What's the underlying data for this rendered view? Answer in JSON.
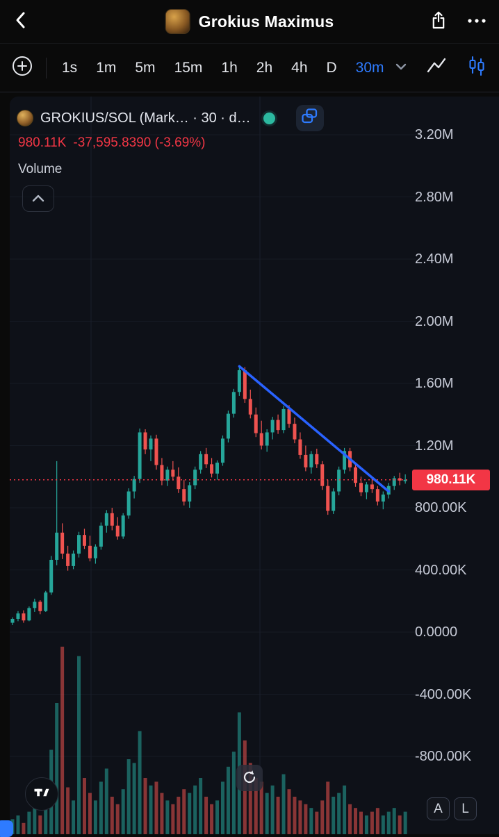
{
  "header": {
    "title": "Grokius Maximus"
  },
  "toolbar": {
    "timeframes": [
      "1s",
      "1m",
      "5m",
      "15m",
      "1h",
      "2h",
      "4h",
      "D"
    ],
    "active_timeframe": "30m"
  },
  "legend": {
    "symbol": "GROKIUS/SOL (Mark… · 30 · d…",
    "price": "980.11K",
    "change": "-37,595.8390 (-3.69%)",
    "volume_label": "Volume"
  },
  "price_axis": {
    "labels": [
      {
        "text": "3.20M",
        "value": 3200
      },
      {
        "text": "2.80M",
        "value": 2800
      },
      {
        "text": "2.40M",
        "value": 2400
      },
      {
        "text": "2.00M",
        "value": 2000
      },
      {
        "text": "1.60M",
        "value": 1600
      },
      {
        "text": "1.20M",
        "value": 1200
      },
      {
        "text": "800.00K",
        "value": 800
      },
      {
        "text": "400.00K",
        "value": 400
      },
      {
        "text": "0.0000",
        "value": 0
      },
      {
        "text": "-400.00K",
        "value": -400
      },
      {
        "text": "-800.00K",
        "value": -800
      }
    ],
    "last_price_label": {
      "text": "980.11K",
      "value": 980.11
    }
  },
  "footer_buttons": {
    "auto_label": "A",
    "log_label": "L"
  },
  "colors": {
    "up": "#26a69a",
    "down": "#ef5350",
    "accent_blue": "#2e7bff",
    "trendline": "#2962ff",
    "price_badge_bg": "#f23645",
    "axis_text": "#c6cad6",
    "grid": "#151a24"
  },
  "chart_data": {
    "type": "candlestick",
    "symbol": "GROKIUS/SOL",
    "interval": "30m",
    "y_unit": "K (thousands)",
    "title": "GROKIUS/SOL market cap, 30m candles with volume pane",
    "y_axis_ticks": [
      3200,
      2800,
      2400,
      2000,
      1600,
      1200,
      800,
      400,
      0,
      -400,
      -800
    ],
    "last_price": 980.11,
    "price_line": 980.11,
    "trendline": {
      "from_index": 41,
      "from_price": 1710,
      "to_index": 68,
      "to_price": 905
    },
    "candles": [
      [
        60,
        95,
        45,
        85
      ],
      [
        85,
        135,
        70,
        120
      ],
      [
        120,
        140,
        60,
        75
      ],
      [
        75,
        165,
        70,
        155
      ],
      [
        155,
        215,
        130,
        195
      ],
      [
        195,
        205,
        115,
        135
      ],
      [
        135,
        265,
        130,
        255
      ],
      [
        255,
        490,
        240,
        465
      ],
      [
        465,
        1100,
        430,
        640
      ],
      [
        640,
        700,
        470,
        505
      ],
      [
        505,
        555,
        395,
        425
      ],
      [
        425,
        525,
        405,
        505
      ],
      [
        505,
        645,
        480,
        625
      ],
      [
        625,
        665,
        535,
        555
      ],
      [
        555,
        620,
        455,
        475
      ],
      [
        475,
        565,
        440,
        550
      ],
      [
        550,
        705,
        530,
        685
      ],
      [
        685,
        785,
        640,
        765
      ],
      [
        765,
        800,
        655,
        685
      ],
      [
        685,
        740,
        595,
        615
      ],
      [
        615,
        765,
        600,
        750
      ],
      [
        750,
        925,
        730,
        905
      ],
      [
        905,
        1005,
        860,
        985
      ],
      [
        985,
        1310,
        960,
        1285
      ],
      [
        1285,
        1305,
        1145,
        1175
      ],
      [
        1175,
        1265,
        1100,
        1245
      ],
      [
        1245,
        1270,
        1045,
        1075
      ],
      [
        1075,
        1120,
        945,
        975
      ],
      [
        975,
        1065,
        940,
        1045
      ],
      [
        1045,
        1100,
        975,
        1000
      ],
      [
        1000,
        1060,
        895,
        920
      ],
      [
        920,
        980,
        815,
        840
      ],
      [
        840,
        965,
        800,
        945
      ],
      [
        945,
        1065,
        920,
        1045
      ],
      [
        1045,
        1165,
        1020,
        1145
      ],
      [
        1145,
        1185,
        1055,
        1080
      ],
      [
        1080,
        1120,
        995,
        1020
      ],
      [
        1020,
        1105,
        980,
        1090
      ],
      [
        1090,
        1265,
        1070,
        1245
      ],
      [
        1245,
        1425,
        1220,
        1405
      ],
      [
        1405,
        1565,
        1380,
        1545
      ],
      [
        1545,
        1715,
        1520,
        1685
      ],
      [
        1685,
        1705,
        1475,
        1500
      ],
      [
        1500,
        1560,
        1375,
        1400
      ],
      [
        1400,
        1445,
        1255,
        1280
      ],
      [
        1280,
        1360,
        1175,
        1200
      ],
      [
        1200,
        1305,
        1160,
        1285
      ],
      [
        1285,
        1385,
        1240,
        1365
      ],
      [
        1365,
        1400,
        1275,
        1300
      ],
      [
        1300,
        1455,
        1280,
        1435
      ],
      [
        1435,
        1460,
        1315,
        1340
      ],
      [
        1340,
        1380,
        1215,
        1240
      ],
      [
        1240,
        1285,
        1115,
        1140
      ],
      [
        1140,
        1200,
        1035,
        1060
      ],
      [
        1060,
        1165,
        1020,
        1145
      ],
      [
        1145,
        1180,
        1055,
        1080
      ],
      [
        1080,
        1100,
        915,
        940
      ],
      [
        940,
        980,
        755,
        780
      ],
      [
        780,
        925,
        760,
        905
      ],
      [
        905,
        1065,
        880,
        1045
      ],
      [
        1045,
        1185,
        1020,
        1165
      ],
      [
        1165,
        1185,
        1035,
        1060
      ],
      [
        1060,
        1080,
        935,
        960
      ],
      [
        960,
        1000,
        875,
        900
      ],
      [
        900,
        965,
        855,
        950
      ],
      [
        950,
        1000,
        895,
        920
      ],
      [
        920,
        940,
        815,
        840
      ],
      [
        840,
        905,
        790,
        885
      ],
      [
        885,
        960,
        860,
        940
      ],
      [
        940,
        1005,
        915,
        990
      ],
      [
        990,
        1025,
        945,
        975
      ],
      [
        975,
        1015,
        955,
        980.11
      ]
    ],
    "volumes": [
      8,
      10,
      6,
      12,
      18,
      10,
      22,
      45,
      70,
      100,
      25,
      18,
      95,
      30,
      22,
      18,
      28,
      35,
      20,
      16,
      24,
      40,
      38,
      55,
      30,
      26,
      28,
      22,
      18,
      16,
      20,
      24,
      22,
      26,
      30,
      20,
      16,
      18,
      28,
      36,
      44,
      65,
      50,
      38,
      30,
      28,
      22,
      26,
      20,
      32,
      24,
      20,
      18,
      16,
      14,
      12,
      18,
      28,
      20,
      22,
      26,
      16,
      14,
      12,
      10,
      12,
      14,
      10,
      12,
      14,
      10,
      12
    ]
  }
}
